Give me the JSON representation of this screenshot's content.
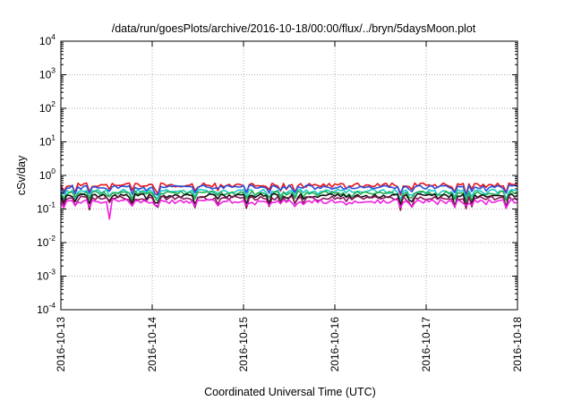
{
  "chart_data": {
    "type": "line",
    "title": "/data/run/goesPlots/archive/2016-10-18/00:00/flux/../bryn/5daysMoon.plot",
    "xlabel": "Coordinated Universal Time (UTC)",
    "ylabel": "cSv/day",
    "y_scale": "log",
    "ylim": [
      0.0001,
      10000
    ],
    "y_ticks": [
      {
        "base": "10",
        "exp": "4"
      },
      {
        "base": "10",
        "exp": "3"
      },
      {
        "base": "10",
        "exp": "2"
      },
      {
        "base": "10",
        "exp": "1"
      },
      {
        "base": "10",
        "exp": "0"
      },
      {
        "base": "10",
        "exp": "-1"
      },
      {
        "base": "10",
        "exp": "-2"
      },
      {
        "base": "10",
        "exp": "-3"
      },
      {
        "base": "10",
        "exp": "-4"
      }
    ],
    "x_ticks": [
      "2016-10-13",
      "2016-10-14",
      "2016-10-15",
      "2016-10-16",
      "2016-10-17",
      "2016-10-18"
    ],
    "xlim": [
      "2016-10-13",
      "2016-10-18"
    ],
    "grid": true,
    "series": [
      {
        "color": "#e8141c",
        "base": 0.52,
        "dip": 0.62
      },
      {
        "color": "#2a4fd9",
        "base": 0.45,
        "dip": 0.55
      },
      {
        "color": "#1ec8c8",
        "base": 0.34,
        "dip": 0.58
      },
      {
        "color": "#20b050",
        "base": 0.3,
        "dip": 0.6
      },
      {
        "color": "#111111",
        "base": 0.25,
        "dip": 0.7
      },
      {
        "color": "#8a1a5a",
        "base": 0.21,
        "dip": 0.75
      },
      {
        "color": "#f020e0",
        "base": 0.17,
        "dip": 0.45
      }
    ],
    "notes": "Seven noisy series (about 3-hourly samples) hovering between ~0.1 and ~0.6 cSv/day across the five days, with intermittent downward spikes; the magenta series has a deep dip near 2016-10-13 13:00 down to ~0.05."
  }
}
